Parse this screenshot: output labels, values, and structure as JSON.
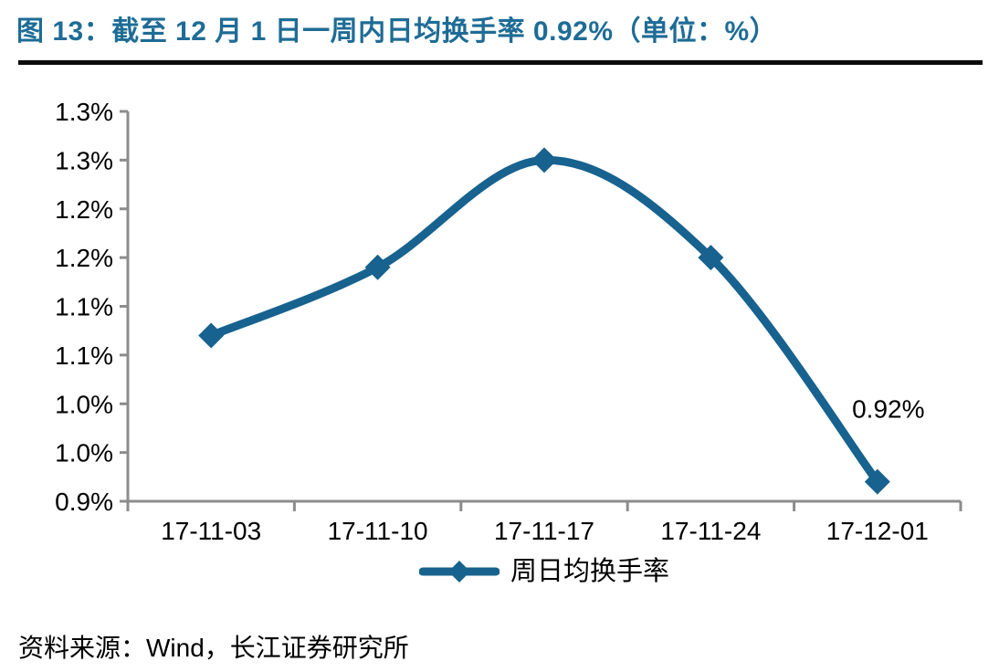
{
  "header": {
    "title": "图 13：截至 12 月 1 日一周内日均换手率 0.92%（单位：%）",
    "title_color": "#1E6C96",
    "rule_color": "#0B0B0B"
  },
  "chart_data": {
    "type": "line",
    "title": "截至 12 月 1 日一周内日均换手率 0.92%",
    "xlabel": "",
    "ylabel": "",
    "unit": "%",
    "categories": [
      "17-11-03",
      "17-11-10",
      "17-11-17",
      "17-11-24",
      "17-12-01"
    ],
    "series": [
      {
        "name": "周日均换手率",
        "values": [
          1.07,
          1.14,
          1.25,
          1.15,
          0.92
        ],
        "color": "#17628E"
      }
    ],
    "ylim": [
      0.9,
      1.3
    ],
    "y_tick_step": 0.05,
    "y_tick_labels_bottom_to_top": [
      "0.9%",
      "1.0%",
      "1.0%",
      "1.1%",
      "1.1%",
      "1.2%",
      "1.2%",
      "1.3%",
      "1.3%"
    ],
    "annotation": {
      "text": "0.92%",
      "point_index": 4
    },
    "legend_position": "bottom",
    "grid": false,
    "smooth": true,
    "marker": "diamond",
    "axis_color": "#8C8C8C",
    "text_color": "#000000"
  },
  "footer": {
    "source": "资料来源：Wind，长江证券研究所"
  }
}
